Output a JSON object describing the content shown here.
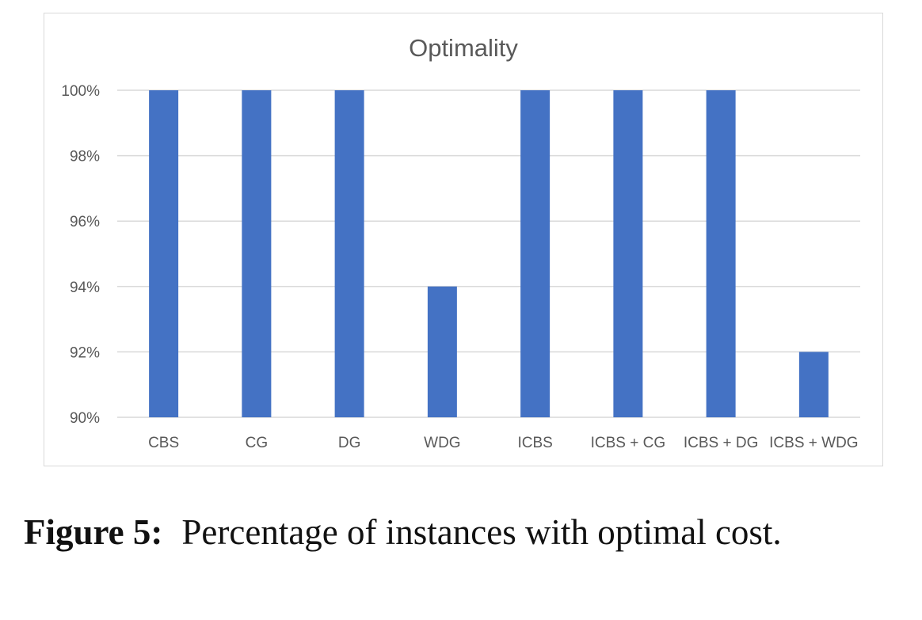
{
  "chart_data": {
    "type": "bar",
    "title": "Optimality",
    "categories": [
      "CBS",
      "CG",
      "DG",
      "WDG",
      "ICBS",
      "ICBS + CG",
      "ICBS + DG",
      "ICBS + WDG"
    ],
    "series": [
      {
        "values": [
          100,
          100,
          100,
          94,
          100,
          100,
          100,
          92
        ]
      }
    ],
    "ylim": [
      90,
      100
    ],
    "yticks": [
      "90%",
      "92%",
      "94%",
      "96%",
      "98%",
      "100%"
    ],
    "grid": true,
    "bar_color": "#4472c4",
    "grid_color": "#d9d9d9",
    "text_color": "#595959"
  },
  "caption": {
    "label": "Figure 5:",
    "text": "Percentage of instances with optimal cost."
  }
}
